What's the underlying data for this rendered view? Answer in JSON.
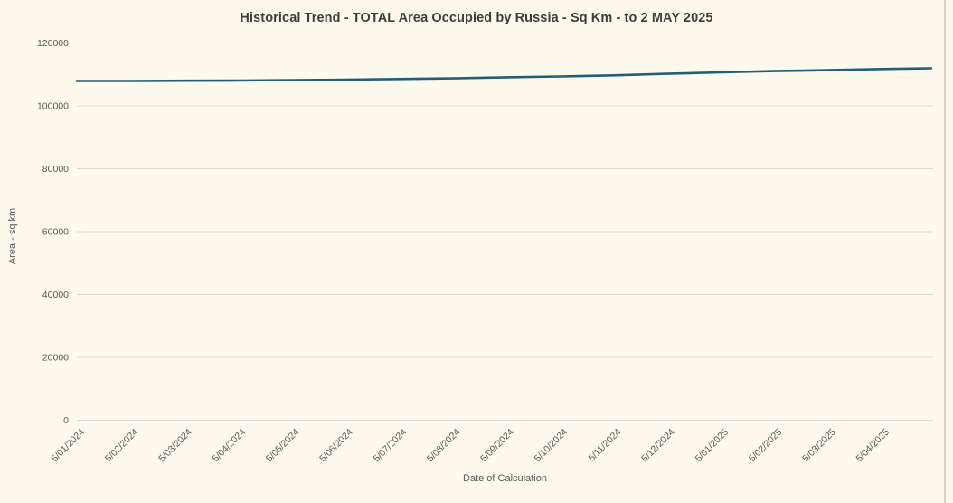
{
  "window": {
    "background_color": "#FDF9EC",
    "right_border_color": "#D2D2D2"
  },
  "colors": {
    "line": "#235E78",
    "gridline": "#D9D9D9",
    "title_text": "#3D3D3D",
    "tick_text": "#595959"
  },
  "chart_data": {
    "type": "line",
    "title": "Historical Trend - TOTAL Area Occupied by Russia - Sq Km - to 2 MAY 2025",
    "xlabel": "Date of Calculation",
    "ylabel": "Area - sq km",
    "x": [
      "5/01/2024",
      "5/02/2024",
      "5/03/2024",
      "5/04/2024",
      "5/05/2024",
      "5/06/2024",
      "5/07/2024",
      "5/08/2024",
      "5/09/2024",
      "5/10/2024",
      "5/11/2024",
      "5/12/2024",
      "5/01/2025",
      "5/02/2025",
      "5/03/2025",
      "5/04/2025"
    ],
    "end_point_label": "2 MAY 2025",
    "series": [
      {
        "name": "TOTAL Area Occupied by Russia - Sq Km",
        "color": "#235E78",
        "values": [
          107900,
          107900,
          108000,
          108050,
          108200,
          108350,
          108550,
          108750,
          109100,
          109350,
          109700,
          110200,
          110650,
          111050,
          111350,
          111700,
          111950
        ]
      }
    ],
    "ylim": [
      0,
      120000
    ],
    "y_ticks": [
      0,
      20000,
      40000,
      60000,
      80000,
      100000,
      120000
    ],
    "grid": "horizontal",
    "legend": "none"
  }
}
